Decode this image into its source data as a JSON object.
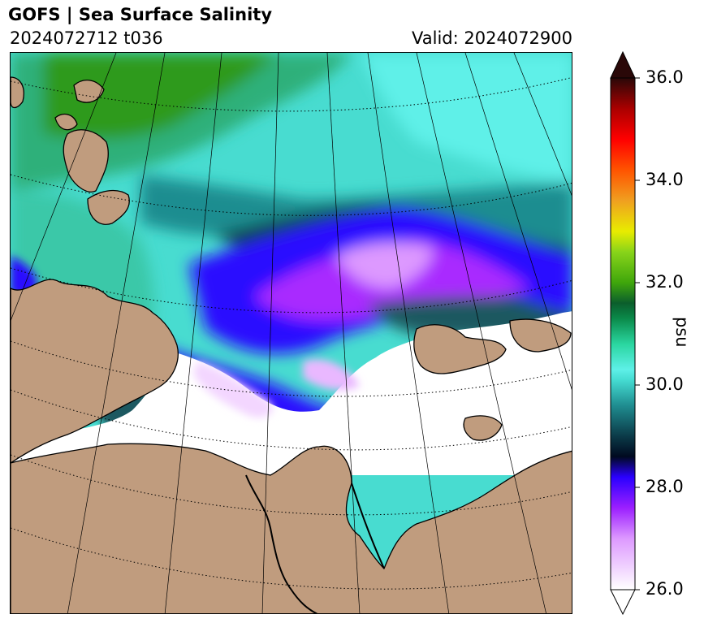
{
  "header": {
    "title": "GOFS  |  Sea Surface Salinity",
    "run_label": "2024072712 t036",
    "valid_label": "Valid: 2024072900"
  },
  "colorbar": {
    "unit": "psu",
    "min": 26.0,
    "max": 36.0,
    "extend": "both",
    "ticks": [
      {
        "value": 26.0,
        "label": "26.0"
      },
      {
        "value": 28.0,
        "label": "28.0"
      },
      {
        "value": 30.0,
        "label": "30.0"
      },
      {
        "value": 32.0,
        "label": "32.0"
      },
      {
        "value": 34.0,
        "label": "34.0"
      },
      {
        "value": 36.0,
        "label": "36.0"
      }
    ],
    "stops": [
      {
        "value": 26.0,
        "color": "#ffffff"
      },
      {
        "value": 27.0,
        "color": "#dd99ff"
      },
      {
        "value": 27.6,
        "color": "#9b1fff"
      },
      {
        "value": 28.2,
        "color": "#2a00ff"
      },
      {
        "value": 28.6,
        "color": "#000a20"
      },
      {
        "value": 29.0,
        "color": "#0b3a48"
      },
      {
        "value": 29.6,
        "color": "#1f8d90"
      },
      {
        "value": 30.1,
        "color": "#45dcd2"
      },
      {
        "value": 30.3,
        "color": "#5ef0e8"
      },
      {
        "value": 30.8,
        "color": "#2ad6a0"
      },
      {
        "value": 31.3,
        "color": "#0a8a4a"
      },
      {
        "value": 31.6,
        "color": "#0b5e2c"
      },
      {
        "value": 32.0,
        "color": "#3fa60b"
      },
      {
        "value": 32.6,
        "color": "#89d41a"
      },
      {
        "value": 33.0,
        "color": "#e8ec00"
      },
      {
        "value": 33.6,
        "color": "#f0a020"
      },
      {
        "value": 34.2,
        "color": "#ff5400"
      },
      {
        "value": 34.8,
        "color": "#ff0000"
      },
      {
        "value": 35.4,
        "color": "#aa0000"
      },
      {
        "value": 36.0,
        "color": "#2a0808"
      }
    ]
  },
  "colors": {
    "land": "#c09c7e",
    "low_salinity_ice": "#ffffff",
    "open_sea": "#48dcd0",
    "coast": "#000000"
  }
}
